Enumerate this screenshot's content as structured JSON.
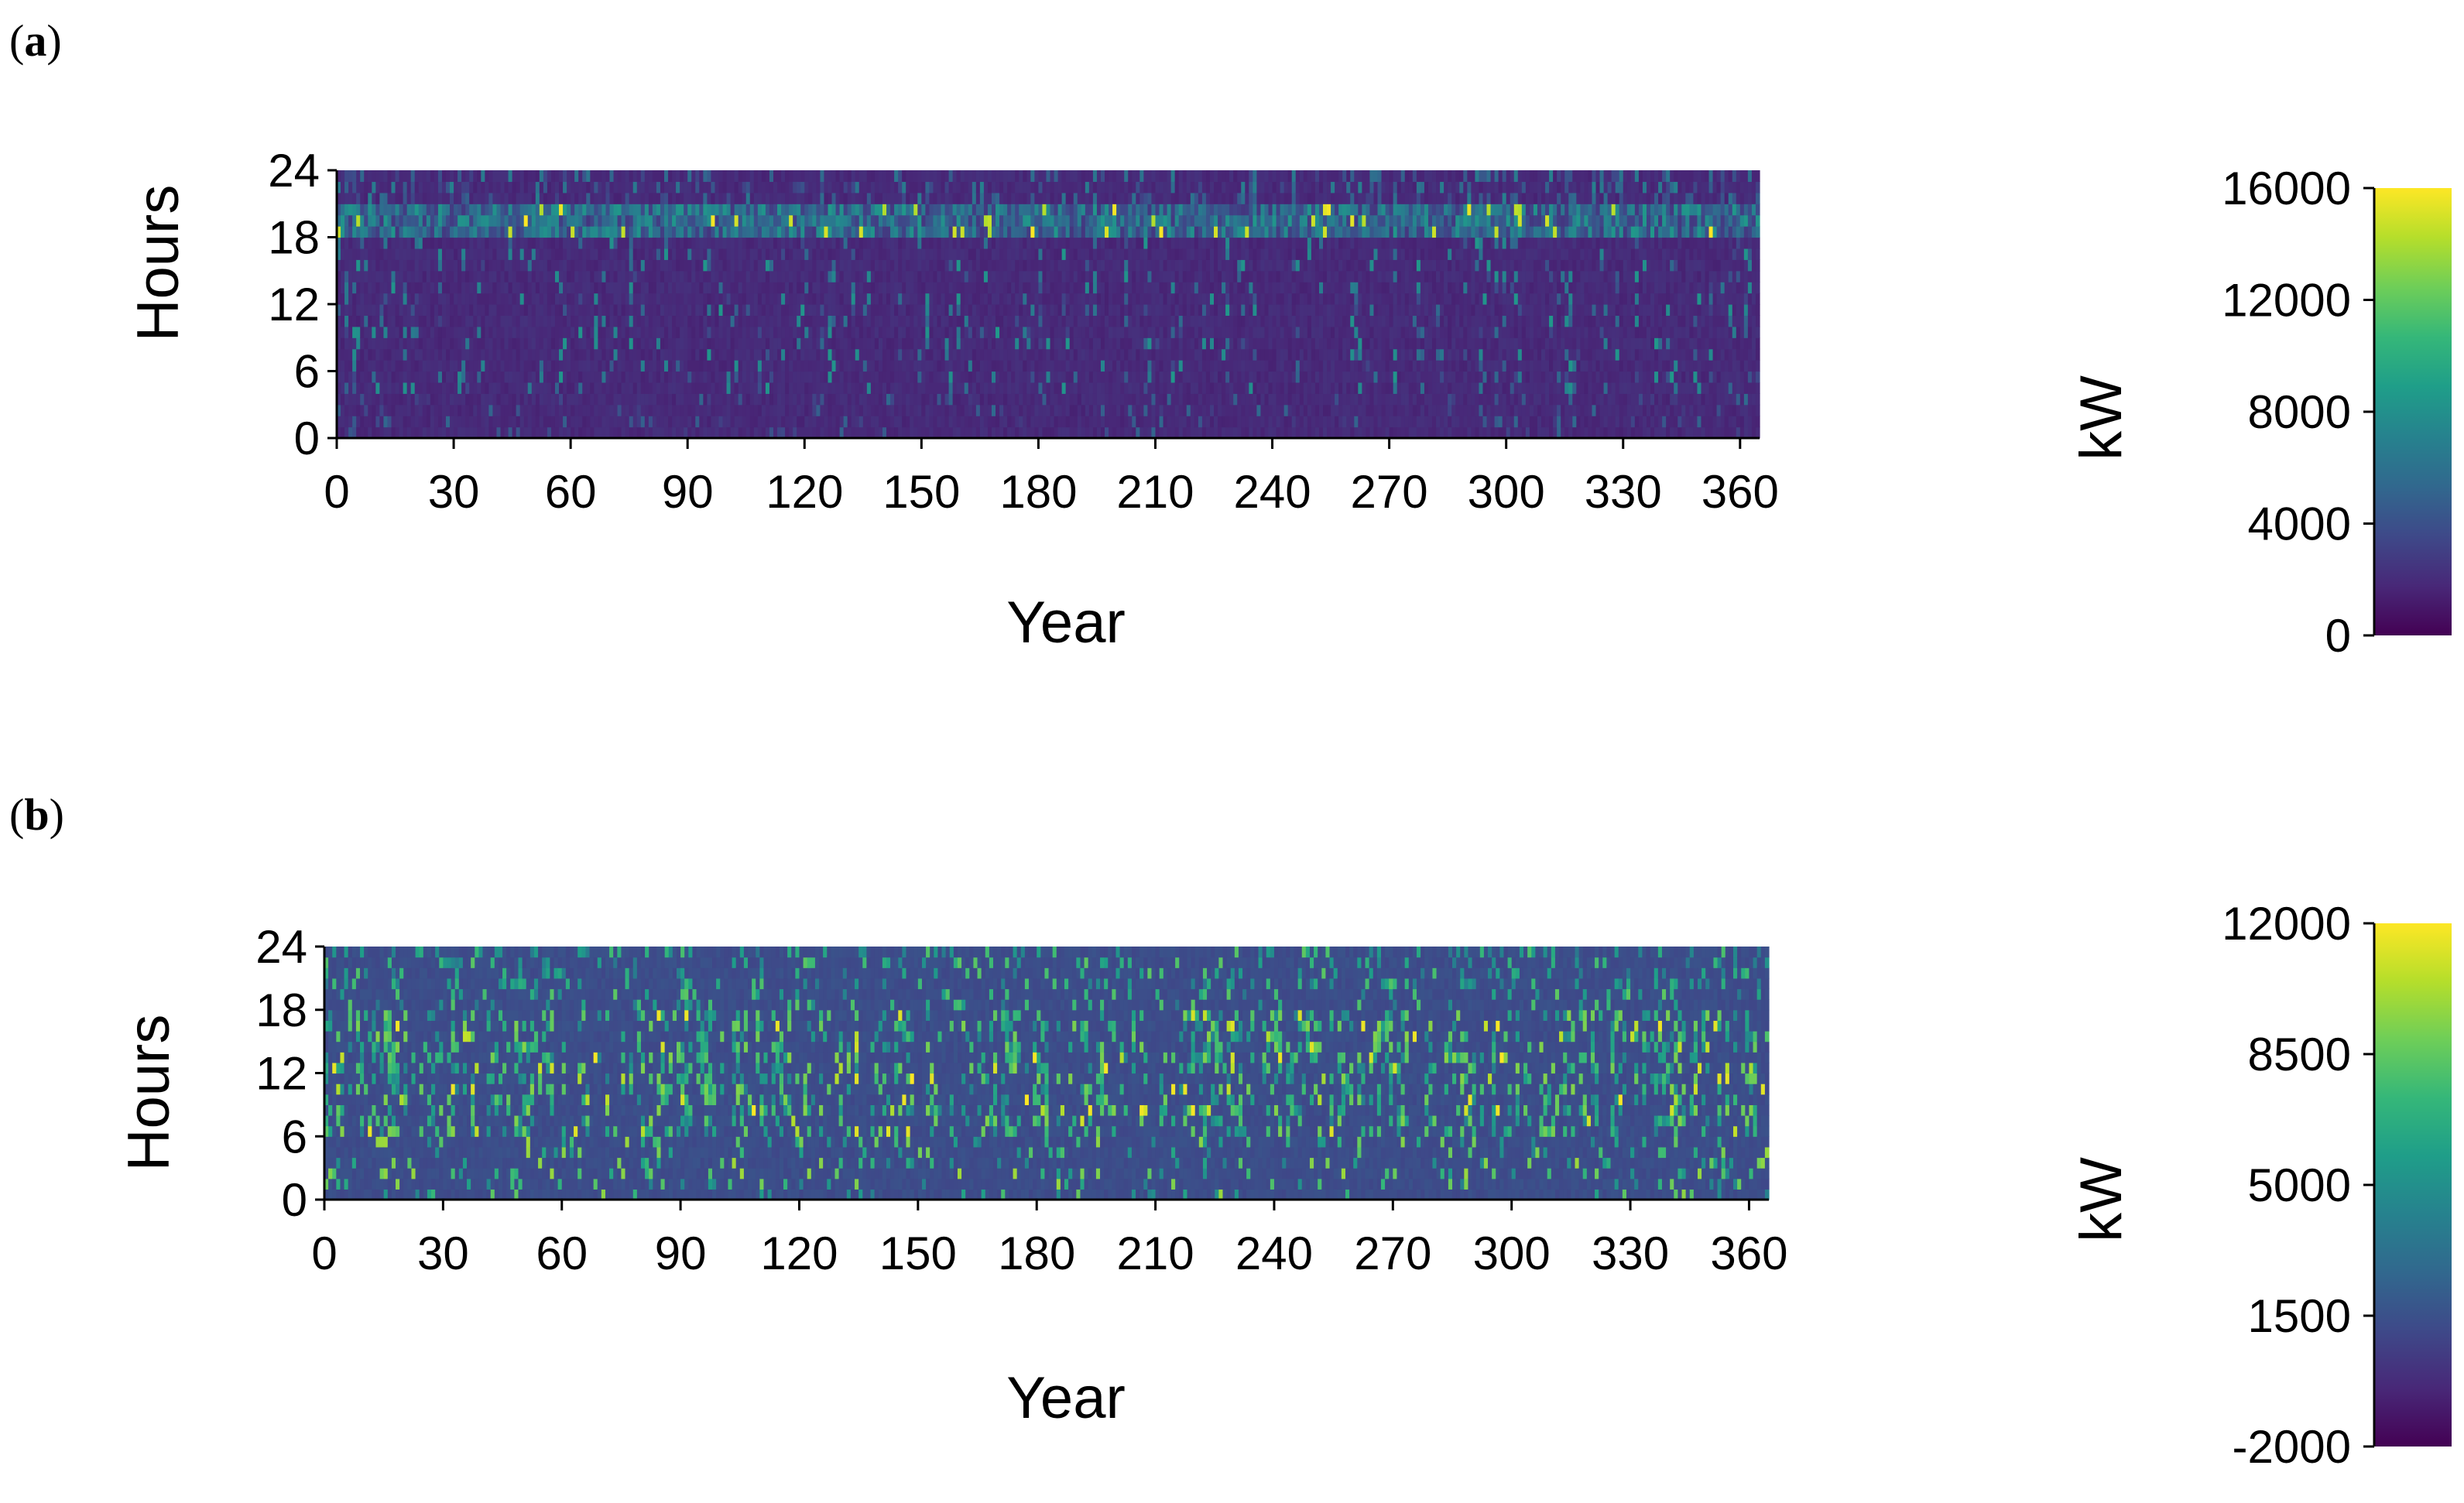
{
  "chart_data": [
    {
      "panel": "(a)",
      "type": "heatmap",
      "xlabel": "Year",
      "ylabel": "Hours",
      "xlim": [
        0,
        365
      ],
      "ylim": [
        0,
        24
      ],
      "xticks": [
        0,
        30,
        60,
        90,
        120,
        150,
        180,
        210,
        240,
        270,
        300,
        330,
        360
      ],
      "yticks": [
        0,
        6,
        12,
        18,
        24
      ],
      "colorbar": {
        "label": "kW",
        "min": 0,
        "max": 16000,
        "ticks": [
          0,
          4000,
          8000,
          12000,
          16000
        ],
        "colormap": "viridis"
      },
      "description_of_pattern": {
        "base_level_kW": 1500,
        "evening_band_hours": [
          18,
          20
        ],
        "evening_band_level_kW": 7000,
        "daytime_spikes_level_kW": 5500,
        "peak_kW": 16000
      }
    },
    {
      "panel": "(b)",
      "type": "heatmap",
      "xlabel": "Year",
      "ylabel": "Hours",
      "xlim": [
        0,
        365
      ],
      "ylim": [
        0,
        24
      ],
      "xticks": [
        0,
        30,
        60,
        90,
        120,
        150,
        180,
        210,
        240,
        270,
        300,
        330,
        360
      ],
      "yticks": [
        0,
        6,
        12,
        18,
        24
      ],
      "colorbar": {
        "label": "kW",
        "min": -2000,
        "max": 12000,
        "ticks": [
          -2000,
          1500,
          5000,
          8500,
          12000
        ],
        "colormap": "viridis"
      },
      "description_of_pattern": {
        "base_level_kW": 1000,
        "day_band_hours": [
          6,
          18
        ],
        "day_band_level_kW": 7000,
        "night_spikes_level_kW": 9000,
        "peak_kW": 12000
      }
    }
  ],
  "colors": {
    "viridis": [
      "#440154",
      "#482878",
      "#3e4989",
      "#31688e",
      "#26828e",
      "#1f9e89",
      "#35b779",
      "#6ece58",
      "#b5de2b",
      "#fde725"
    ]
  }
}
